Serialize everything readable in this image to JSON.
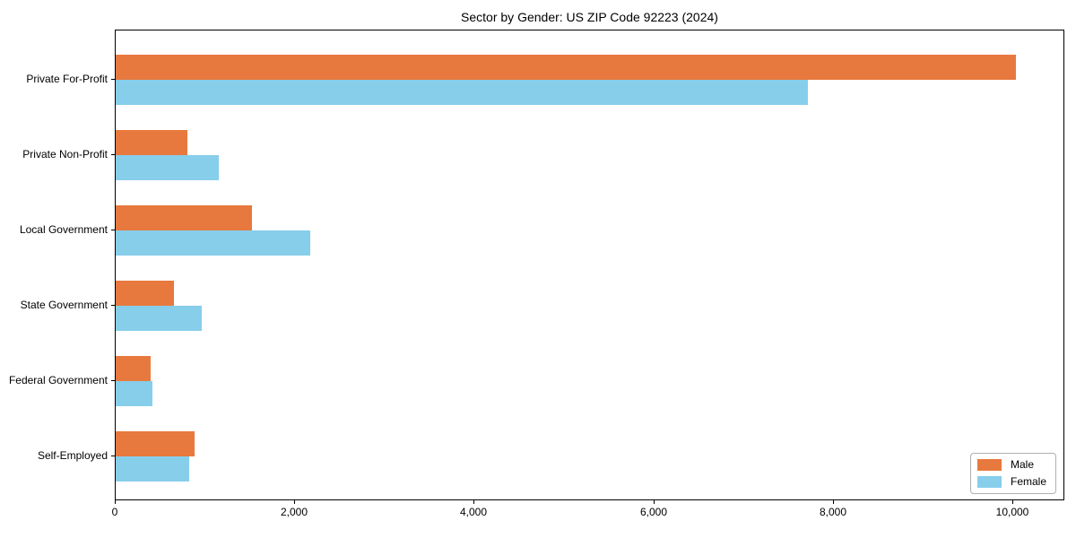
{
  "chart_data": {
    "type": "bar",
    "orientation": "horizontal",
    "title": "Sector by Gender: US ZIP Code 92223 (2024)",
    "categories": [
      "Private For-Profit",
      "Private Non-Profit",
      "Local Government",
      "State Government",
      "Federal Government",
      "Self-Employed"
    ],
    "series": [
      {
        "name": "Male",
        "color": "#e8793e",
        "values": [
          10030,
          800,
          1520,
          650,
          390,
          880
        ]
      },
      {
        "name": "Female",
        "color": "#87ceeb",
        "values": [
          7710,
          1150,
          2170,
          960,
          410,
          820
        ]
      }
    ],
    "x_ticks": [
      {
        "value": 0,
        "label": "0"
      },
      {
        "value": 2000,
        "label": "2,000"
      },
      {
        "value": 4000,
        "label": "4,000"
      },
      {
        "value": 6000,
        "label": "6,000"
      },
      {
        "value": 8000,
        "label": "8,000"
      },
      {
        "value": 10000,
        "label": "10,000"
      }
    ],
    "xlim": [
      0,
      10560
    ],
    "ylabel": "",
    "xlabel": "",
    "grid": false,
    "legend_position": "lower right",
    "axis_color": "#000000",
    "background_color": "#ffffff"
  }
}
